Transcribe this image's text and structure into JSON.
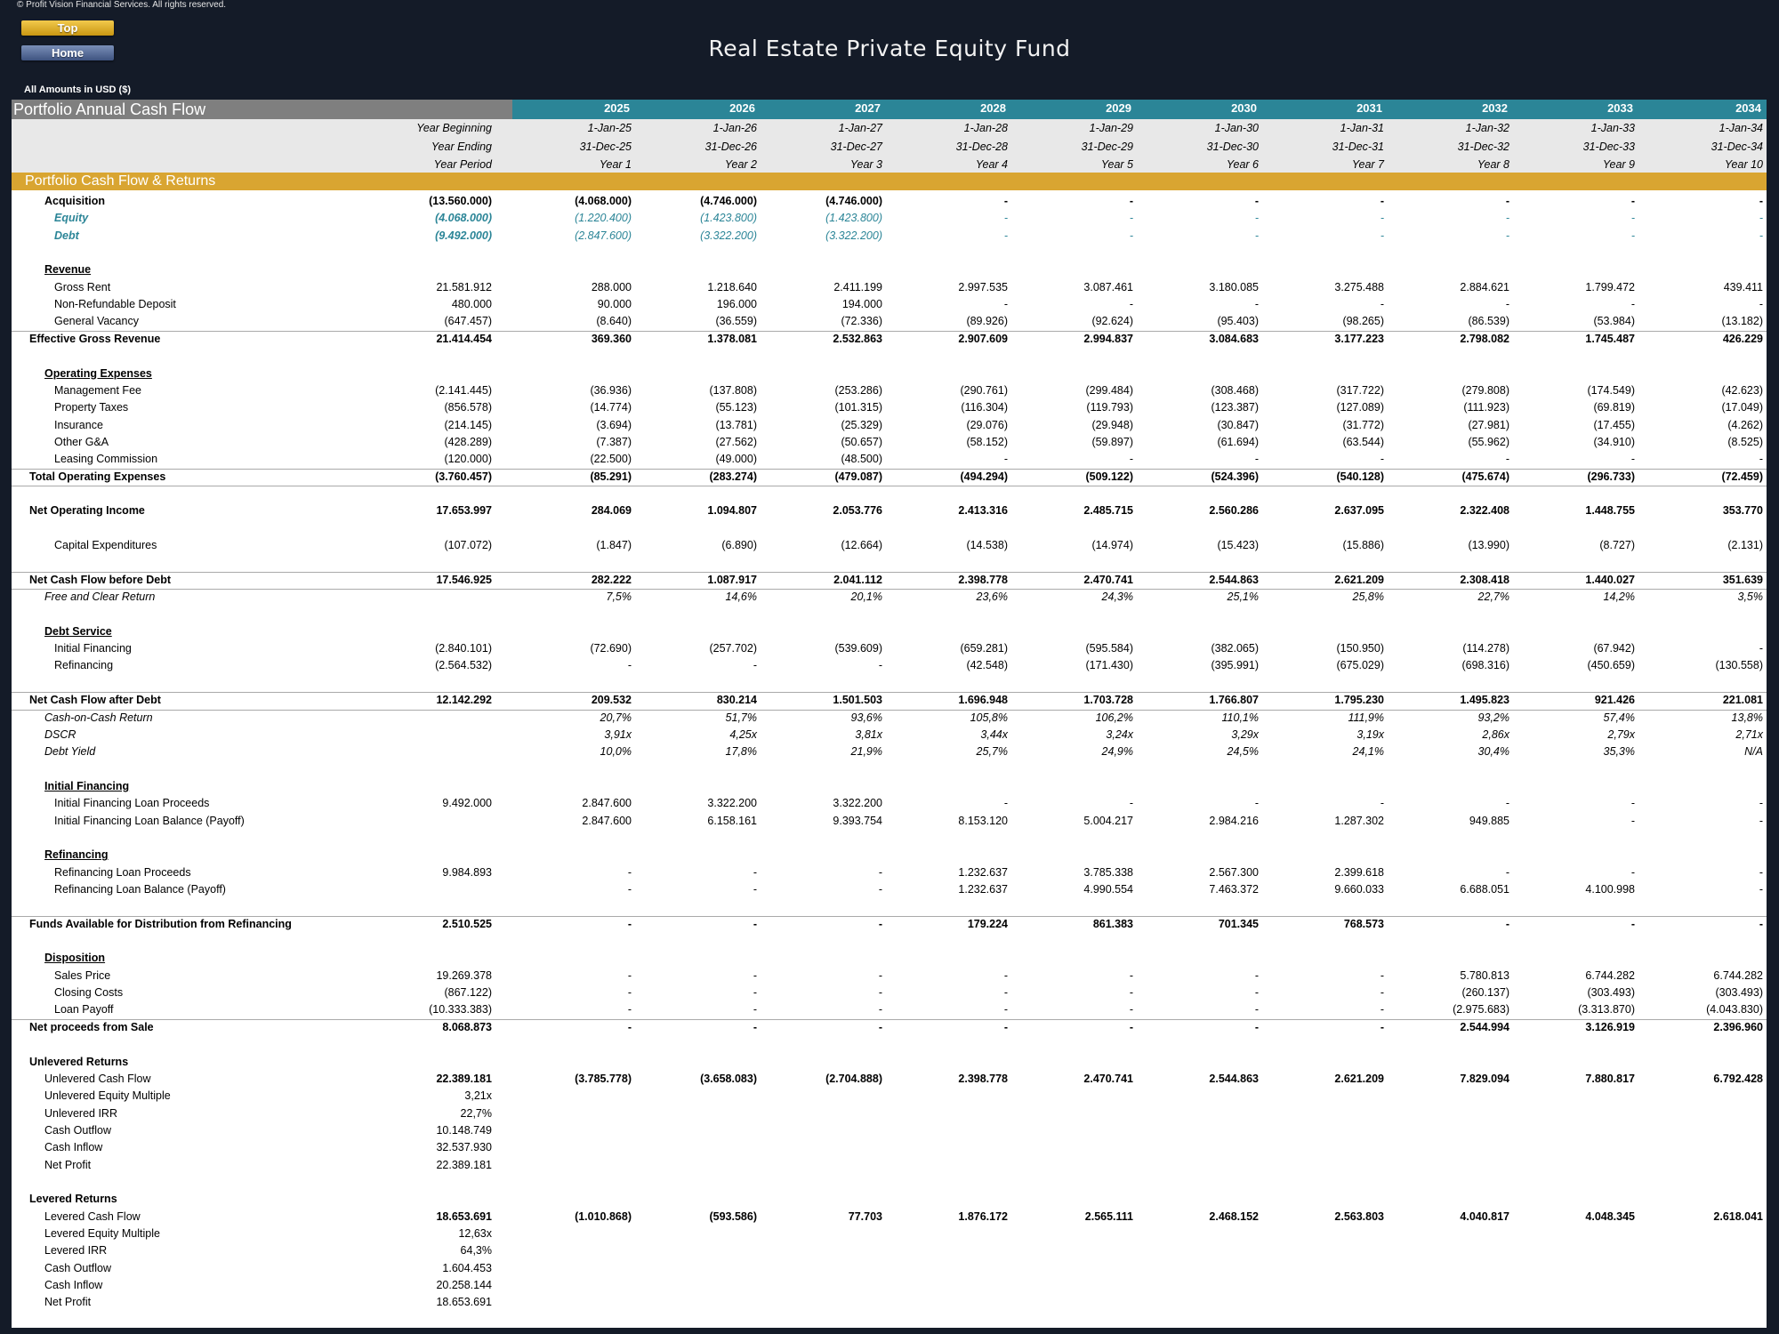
{
  "copyright": "© Profit Vision Financial Services. All rights reserved.",
  "nav": {
    "top": "Top",
    "home": "Home"
  },
  "title": "Real Estate Private Equity Fund",
  "amounts_note": "All Amounts in  USD ($)",
  "header_label": "Portfolio Annual Cash Flow",
  "years": [
    "2025",
    "2026",
    "2027",
    "2028",
    "2029",
    "2030",
    "2031",
    "2032",
    "2033",
    "2034"
  ],
  "meta_rows": [
    {
      "label": "Year Beginning",
      "values": [
        "1-Jan-25",
        "1-Jan-26",
        "1-Jan-27",
        "1-Jan-28",
        "1-Jan-29",
        "1-Jan-30",
        "1-Jan-31",
        "1-Jan-32",
        "1-Jan-33",
        "1-Jan-34"
      ]
    },
    {
      "label": "Year Ending",
      "values": [
        "31-Dec-25",
        "31-Dec-26",
        "31-Dec-27",
        "31-Dec-28",
        "31-Dec-29",
        "31-Dec-30",
        "31-Dec-31",
        "31-Dec-32",
        "31-Dec-33",
        "31-Dec-34"
      ]
    },
    {
      "label": "Year Period",
      "values": [
        "Year 1",
        "Year 2",
        "Year 3",
        "Year 4",
        "Year 5",
        "Year 6",
        "Year 7",
        "Year 8",
        "Year 9",
        "Year 10"
      ]
    }
  ],
  "section_title": "Portfolio Cash Flow & Returns",
  "rows": [
    {
      "label": "Acquisition",
      "style": "b",
      "indent": 1,
      "total": "(13.560.000)",
      "values": [
        "(4.068.000)",
        "(4.746.000)",
        "(4.746.000)",
        "-",
        "-",
        "-",
        "-",
        "-",
        "-",
        "-"
      ]
    },
    {
      "label": "Equity",
      "style": "teal",
      "indent": 2,
      "total": "(4.068.000)",
      "values": [
        "(1.220.400)",
        "(1.423.800)",
        "(1.423.800)",
        "-",
        "-",
        "-",
        "-",
        "-",
        "-",
        "-"
      ]
    },
    {
      "label": "Debt",
      "style": "teal",
      "indent": 2,
      "total": "(9.492.000)",
      "values": [
        "(2.847.600)",
        "(3.322.200)",
        "(3.322.200)",
        "-",
        "-",
        "-",
        "-",
        "-",
        "-",
        "-"
      ]
    },
    {
      "gap": true
    },
    {
      "label": "Revenue",
      "style": "u",
      "indent": 1
    },
    {
      "label": "Gross Rent",
      "indent": 2,
      "total": "21.581.912",
      "values": [
        "288.000",
        "1.218.640",
        "2.411.199",
        "2.997.535",
        "3.087.461",
        "3.180.085",
        "3.275.488",
        "2.884.621",
        "1.799.472",
        "439.411"
      ]
    },
    {
      "label": "Non-Refundable Deposit",
      "indent": 2,
      "total": "480.000",
      "values": [
        "90.000",
        "196.000",
        "194.000",
        "-",
        "-",
        "-",
        "-",
        "-",
        "-",
        "-"
      ]
    },
    {
      "label": "General Vacancy",
      "indent": 2,
      "total": "(647.457)",
      "values": [
        "(8.640)",
        "(36.559)",
        "(72.336)",
        "(89.926)",
        "(92.624)",
        "(95.403)",
        "(98.265)",
        "(86.539)",
        "(53.984)",
        "(13.182)"
      ],
      "line_after": true
    },
    {
      "label": "Effective Gross Revenue",
      "style": "b",
      "indent": 0,
      "total": "21.414.454",
      "values": [
        "369.360",
        "1.378.081",
        "2.532.863",
        "2.907.609",
        "2.994.837",
        "3.084.683",
        "3.177.223",
        "2.798.082",
        "1.745.487",
        "426.229"
      ]
    },
    {
      "gap": true
    },
    {
      "label": "Operating Expenses",
      "style": "u",
      "indent": 1
    },
    {
      "label": "Management Fee",
      "indent": 2,
      "total": "(2.141.445)",
      "values": [
        "(36.936)",
        "(137.808)",
        "(253.286)",
        "(290.761)",
        "(299.484)",
        "(308.468)",
        "(317.722)",
        "(279.808)",
        "(174.549)",
        "(42.623)"
      ]
    },
    {
      "label": "Property Taxes",
      "indent": 2,
      "total": "(856.578)",
      "values": [
        "(14.774)",
        "(55.123)",
        "(101.315)",
        "(116.304)",
        "(119.793)",
        "(123.387)",
        "(127.089)",
        "(111.923)",
        "(69.819)",
        "(17.049)"
      ]
    },
    {
      "label": "Insurance",
      "indent": 2,
      "total": "(214.145)",
      "values": [
        "(3.694)",
        "(13.781)",
        "(25.329)",
        "(29.076)",
        "(29.948)",
        "(30.847)",
        "(31.772)",
        "(27.981)",
        "(17.455)",
        "(4.262)"
      ]
    },
    {
      "label": "Other G&A",
      "indent": 2,
      "total": "(428.289)",
      "values": [
        "(7.387)",
        "(27.562)",
        "(50.657)",
        "(58.152)",
        "(59.897)",
        "(61.694)",
        "(63.544)",
        "(55.962)",
        "(34.910)",
        "(8.525)"
      ]
    },
    {
      "label": "Leasing Commission",
      "indent": 2,
      "total": "(120.000)",
      "values": [
        "(22.500)",
        "(49.000)",
        "(48.500)",
        "-",
        "-",
        "-",
        "-",
        "-",
        "-",
        "-"
      ],
      "line_after": true
    },
    {
      "label": "Total Operating Expenses",
      "style": "b",
      "indent": 0,
      "total": "(3.760.457)",
      "values": [
        "(85.291)",
        "(283.274)",
        "(479.087)",
        "(494.294)",
        "(509.122)",
        "(524.396)",
        "(540.128)",
        "(475.674)",
        "(296.733)",
        "(72.459)"
      ],
      "line_after": true
    },
    {
      "gap": true
    },
    {
      "label": "Net Operating Income",
      "style": "b",
      "indent": 0,
      "total": "17.653.997",
      "values": [
        "284.069",
        "1.094.807",
        "2.053.776",
        "2.413.316",
        "2.485.715",
        "2.560.286",
        "2.637.095",
        "2.322.408",
        "1.448.755",
        "353.770"
      ]
    },
    {
      "gap": true
    },
    {
      "label": "Capital Expenditures",
      "indent": 2,
      "total": "(107.072)",
      "values": [
        "(1.847)",
        "(6.890)",
        "(12.664)",
        "(14.538)",
        "(14.974)",
        "(15.423)",
        "(15.886)",
        "(13.990)",
        "(8.727)",
        "(2.131)"
      ]
    },
    {
      "gap": true,
      "line_after": true
    },
    {
      "label": "Net Cash Flow before Debt",
      "style": "b",
      "indent": 0,
      "total": "17.546.925",
      "values": [
        "282.222",
        "1.087.917",
        "2.041.112",
        "2.398.778",
        "2.470.741",
        "2.544.863",
        "2.621.209",
        "2.308.418",
        "1.440.027",
        "351.639"
      ],
      "line_after": true
    },
    {
      "label": "Free and Clear Return",
      "style": "it",
      "indent": 1,
      "values": [
        "7,5%",
        "14,6%",
        "20,1%",
        "23,6%",
        "24,3%",
        "25,1%",
        "25,8%",
        "22,7%",
        "14,2%",
        "3,5%"
      ]
    },
    {
      "gap": true
    },
    {
      "label": "Debt Service",
      "style": "u",
      "indent": 1
    },
    {
      "label": "Initial Financing",
      "indent": 2,
      "total": "(2.840.101)",
      "values": [
        "(72.690)",
        "(257.702)",
        "(539.609)",
        "(659.281)",
        "(595.584)",
        "(382.065)",
        "(150.950)",
        "(114.278)",
        "(67.942)",
        "-"
      ]
    },
    {
      "label": "Refinancing",
      "indent": 2,
      "total": "(2.564.532)",
      "values": [
        "-",
        "-",
        "-",
        "(42.548)",
        "(171.430)",
        "(395.991)",
        "(675.029)",
        "(698.316)",
        "(450.659)",
        "(130.558)"
      ]
    },
    {
      "gap": true,
      "line_after": true
    },
    {
      "label": "Net Cash Flow after Debt",
      "style": "b",
      "indent": 0,
      "total": "12.142.292",
      "values": [
        "209.532",
        "830.214",
        "1.501.503",
        "1.696.948",
        "1.703.728",
        "1.766.807",
        "1.795.230",
        "1.495.823",
        "921.426",
        "221.081"
      ],
      "line_after": true
    },
    {
      "label": "Cash-on-Cash Return",
      "style": "it",
      "indent": 1,
      "values": [
        "20,7%",
        "51,7%",
        "93,6%",
        "105,8%",
        "106,2%",
        "110,1%",
        "111,9%",
        "93,2%",
        "57,4%",
        "13,8%"
      ]
    },
    {
      "label": "DSCR",
      "style": "it",
      "indent": 1,
      "values": [
        "3,91x",
        "4,25x",
        "3,81x",
        "3,44x",
        "3,24x",
        "3,29x",
        "3,19x",
        "2,86x",
        "2,79x",
        "2,71x"
      ]
    },
    {
      "label": "Debt Yield",
      "style": "it",
      "indent": 1,
      "values": [
        "10,0%",
        "17,8%",
        "21,9%",
        "25,7%",
        "24,9%",
        "24,5%",
        "24,1%",
        "30,4%",
        "35,3%",
        "N/A"
      ]
    },
    {
      "gap": true
    },
    {
      "label": "Initial Financing",
      "style": "u",
      "indent": 1
    },
    {
      "label": "Initial Financing Loan Proceeds",
      "indent": 2,
      "total": "9.492.000",
      "values": [
        "2.847.600",
        "3.322.200",
        "3.322.200",
        "-",
        "-",
        "-",
        "-",
        "-",
        "-",
        "-"
      ]
    },
    {
      "label": "Initial Financing Loan Balance (Payoff)",
      "indent": 2,
      "values": [
        "2.847.600",
        "6.158.161",
        "9.393.754",
        "8.153.120",
        "5.004.217",
        "2.984.216",
        "1.287.302",
        "949.885",
        "-",
        "-"
      ]
    },
    {
      "gap": true
    },
    {
      "label": "Refinancing",
      "style": "u",
      "indent": 1
    },
    {
      "label": "Refinancing Loan Proceeds",
      "indent": 2,
      "total": "9.984.893",
      "values": [
        "-",
        "-",
        "-",
        "1.232.637",
        "3.785.338",
        "2.567.300",
        "2.399.618",
        "-",
        "-",
        "-"
      ]
    },
    {
      "label": "Refinancing Loan Balance (Payoff)",
      "indent": 2,
      "values": [
        "-",
        "-",
        "-",
        "1.232.637",
        "4.990.554",
        "7.463.372",
        "9.660.033",
        "6.688.051",
        "4.100.998",
        "-"
      ]
    },
    {
      "gap": true,
      "line_after": true
    },
    {
      "label": "Funds Available for Distribution from Refinancing",
      "style": "b",
      "indent": 0,
      "total": "2.510.525",
      "values": [
        "-",
        "-",
        "-",
        "179.224",
        "861.383",
        "701.345",
        "768.573",
        "-",
        "-",
        "-"
      ]
    },
    {
      "gap": true
    },
    {
      "label": "Disposition",
      "style": "u",
      "indent": 1
    },
    {
      "label": "Sales Price",
      "indent": 2,
      "total": "19.269.378",
      "values": [
        "-",
        "-",
        "-",
        "-",
        "-",
        "-",
        "-",
        "5.780.813",
        "6.744.282",
        "6.744.282"
      ]
    },
    {
      "label": "Closing Costs",
      "indent": 2,
      "total": "(867.122)",
      "values": [
        "-",
        "-",
        "-",
        "-",
        "-",
        "-",
        "-",
        "(260.137)",
        "(303.493)",
        "(303.493)"
      ]
    },
    {
      "label": "Loan Payoff",
      "indent": 2,
      "total": "(10.333.383)",
      "values": [
        "-",
        "-",
        "-",
        "-",
        "-",
        "-",
        "-",
        "(2.975.683)",
        "(3.313.870)",
        "(4.043.830)"
      ],
      "line_after": true
    },
    {
      "label": "Net proceeds from Sale",
      "style": "b",
      "indent": 0,
      "total": "8.068.873",
      "values": [
        "-",
        "-",
        "-",
        "-",
        "-",
        "-",
        "-",
        "2.544.994",
        "3.126.919",
        "2.396.960"
      ]
    },
    {
      "gap": true
    },
    {
      "label": "Unlevered Returns",
      "style": "b",
      "indent": 0
    },
    {
      "label": "Unlevered Cash Flow",
      "indent": 1,
      "total": "22.389.181",
      "totalbold": true,
      "bold_values": true,
      "values": [
        "(3.785.778)",
        "(3.658.083)",
        "(2.704.888)",
        "2.398.778",
        "2.470.741",
        "2.544.863",
        "2.621.209",
        "7.829.094",
        "7.880.817",
        "6.792.428"
      ]
    },
    {
      "label": "Unlevered Equity Multiple",
      "indent": 1,
      "total": "3,21x"
    },
    {
      "label": "Unlevered IRR",
      "indent": 1,
      "total": "22,7%"
    },
    {
      "label": "Cash Outflow",
      "indent": 1,
      "total": "10.148.749"
    },
    {
      "label": "Cash Inflow",
      "indent": 1,
      "total": "32.537.930"
    },
    {
      "label": "Net Profit",
      "indent": 1,
      "total": "22.389.181"
    },
    {
      "gap": true
    },
    {
      "label": "Levered Returns",
      "style": "b",
      "indent": 0
    },
    {
      "label": "Levered Cash Flow",
      "indent": 1,
      "total": "18.653.691",
      "totalbold": true,
      "bold_values": true,
      "values": [
        "(1.010.868)",
        "(593.586)",
        "77.703",
        "1.876.172",
        "2.565.111",
        "2.468.152",
        "2.563.803",
        "4.040.817",
        "4.048.345",
        "2.618.041"
      ]
    },
    {
      "label": "Levered Equity Multiple",
      "indent": 1,
      "total": "12,63x"
    },
    {
      "label": "Levered IRR",
      "indent": 1,
      "total": "64,3%"
    },
    {
      "label": "Cash Outflow",
      "indent": 1,
      "total": "1.604.453"
    },
    {
      "label": "Cash Inflow",
      "indent": 1,
      "total": "20.258.144"
    },
    {
      "label": "Net Profit",
      "indent": 1,
      "total": "18.653.691"
    }
  ]
}
